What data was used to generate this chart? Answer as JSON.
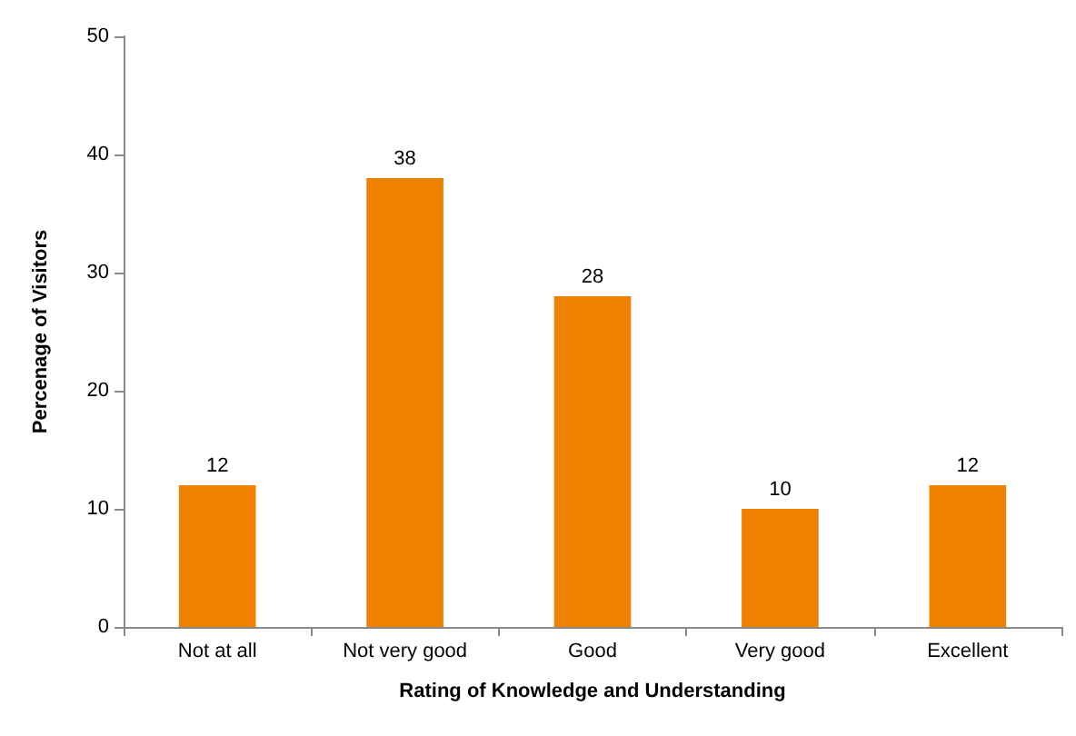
{
  "chart_data": {
    "type": "bar",
    "xlabel": "Rating of Knowledge and Understanding",
    "ylabel": "Percenage of Visitors",
    "categories": [
      "Not at all",
      "Not very good",
      "Good",
      "Very good",
      "Excellent"
    ],
    "values": [
      12,
      38,
      28,
      10,
      12
    ],
    "color": "#ee8200",
    "ylim": [
      0,
      50
    ],
    "yticks": [
      0,
      10,
      20,
      30,
      40,
      50
    ],
    "grid": false,
    "data_labels": true
  }
}
